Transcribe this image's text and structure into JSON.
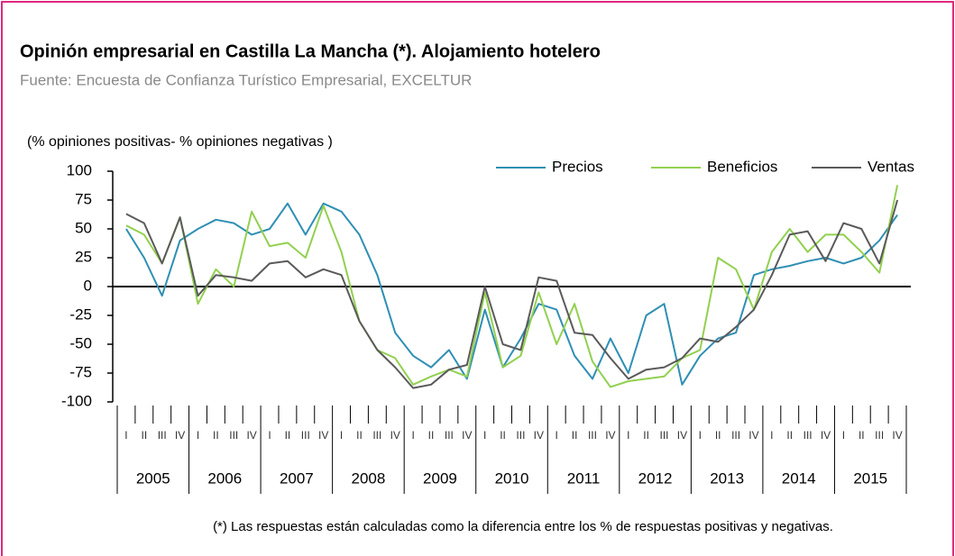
{
  "chart_data": {
    "type": "line",
    "title": "Opinión empresarial en Castilla La Mancha  (*). Alojamiento  hotelero",
    "subtitle": "Fuente: Encuesta de Confianza Turístico Empresarial, EXCELTUR",
    "y_axis_label": "(% opiniones positivas- % opiniones negativas )",
    "footnote": "(*) Las respuestas están calculadas como la diferencia entre los % de respuestas positivas y negativas.",
    "years": [
      "2005",
      "2006",
      "2007",
      "2008",
      "2009",
      "2010",
      "2011",
      "2012",
      "2013",
      "2014",
      "2015"
    ],
    "categories": [
      "I",
      "II",
      "III",
      "IV",
      "I",
      "II",
      "III",
      "IV",
      "I",
      "II",
      "III",
      "IV",
      "I",
      "II",
      "III",
      "IV",
      "I",
      "II",
      "III",
      "IV",
      "I",
      "II",
      "III",
      "IV",
      "I",
      "II",
      "III",
      "IV",
      "I",
      "II",
      "III",
      "IV",
      "I",
      "II",
      "III",
      "IV",
      "I",
      "II",
      "III",
      "IV",
      "I",
      "II",
      "III",
      "IV"
    ],
    "series": [
      {
        "name": "Precios",
        "color": "#2f8fb4",
        "values": [
          50,
          25,
          -8,
          40,
          50,
          58,
          55,
          45,
          50,
          72,
          45,
          72,
          65,
          45,
          10,
          -40,
          -60,
          -70,
          -55,
          -80,
          -20,
          -70,
          -45,
          -15,
          -20,
          -60,
          -80,
          -45,
          -75,
          -25,
          -15,
          -85,
          -60,
          -45,
          -40,
          10,
          15,
          18,
          22,
          25,
          20,
          25,
          40,
          62
        ]
      },
      {
        "name": "Beneficios",
        "color": "#92d050",
        "values": [
          53,
          45,
          20,
          60,
          -15,
          15,
          0,
          65,
          35,
          38,
          25,
          70,
          30,
          -30,
          -55,
          -62,
          -85,
          -78,
          -72,
          -78,
          -5,
          -70,
          -60,
          -5,
          -50,
          -15,
          -65,
          -87,
          -82,
          -80,
          -78,
          -62,
          -55,
          25,
          15,
          -20,
          30,
          50,
          30,
          45,
          45,
          30,
          12,
          88
        ]
      },
      {
        "name": "Ventas",
        "color": "#5a5a5a",
        "values": [
          63,
          55,
          20,
          60,
          -8,
          10,
          8,
          5,
          20,
          22,
          8,
          15,
          10,
          -30,
          -55,
          -70,
          -88,
          -85,
          -72,
          -68,
          0,
          -50,
          -55,
          8,
          5,
          -40,
          -42,
          -62,
          -80,
          -72,
          -70,
          -62,
          -45,
          -48,
          -35,
          -20,
          10,
          45,
          48,
          22,
          55,
          50,
          20,
          75
        ]
      }
    ],
    "ylim": [
      -100,
      100
    ],
    "yticks": [
      100,
      75,
      50,
      25,
      0,
      -25,
      -50,
      -75,
      -100
    ],
    "legend": "top-right"
  }
}
